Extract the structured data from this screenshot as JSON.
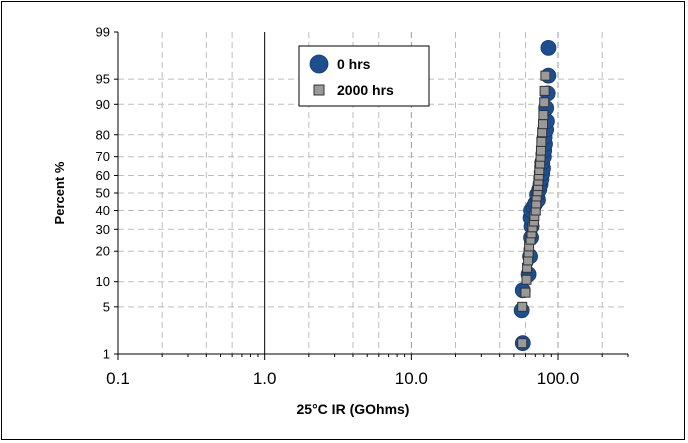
{
  "chart_data": {
    "type": "scatter",
    "title": "",
    "xlabel": "25°C IR (GOhms)",
    "ylabel": "Percent %",
    "x_scale": "log",
    "y_scale": "normal-probability",
    "xlim": [
      0.1,
      300
    ],
    "ylim": [
      1,
      99
    ],
    "x_ticks": [
      0.1,
      1.0,
      10.0,
      100.0
    ],
    "x_tick_labels": [
      "0.1",
      "1.0",
      "10.0",
      "100.0"
    ],
    "y_ticks": [
      1,
      5,
      10,
      20,
      30,
      40,
      50,
      60,
      70,
      80,
      90,
      95,
      99
    ],
    "y_tick_labels": [
      "1",
      "5",
      "10",
      "20",
      "30",
      "40",
      "50",
      "60",
      "70",
      "80",
      "90",
      "95",
      "99"
    ],
    "grid": true,
    "legend_position": "top-center",
    "series": [
      {
        "name": "0 hrs",
        "marker": "circle",
        "color": "#1f4e8f",
        "points": [
          [
            57.5,
            1.5
          ],
          [
            56.5,
            4.5
          ],
          [
            57.5,
            8.0
          ],
          [
            63.0,
            12.0
          ],
          [
            64.5,
            18.0
          ],
          [
            65.5,
            26.0
          ],
          [
            66.0,
            31.5
          ],
          [
            65.0,
            36.0
          ],
          [
            65.5,
            40.0
          ],
          [
            68.0,
            42.0
          ],
          [
            70.0,
            44.0
          ],
          [
            73.0,
            46.0
          ],
          [
            72.0,
            49.0
          ],
          [
            74.5,
            52.0
          ],
          [
            76.0,
            55.0
          ],
          [
            77.0,
            58.0
          ],
          [
            78.0,
            61.0
          ],
          [
            79.0,
            64.0
          ],
          [
            78.0,
            67.0
          ],
          [
            80.0,
            70.0
          ],
          [
            80.5,
            73.0
          ],
          [
            81.5,
            76.0
          ],
          [
            81.0,
            79.0
          ],
          [
            83.0,
            82.0
          ],
          [
            84.0,
            85.0
          ],
          [
            83.0,
            89.0
          ],
          [
            85.0,
            92.5
          ],
          [
            86.0,
            95.5
          ],
          [
            86.0,
            98.2
          ]
        ]
      },
      {
        "name": "2000 hrs",
        "marker": "square",
        "color": "#9a9a9a",
        "points": [
          [
            57.0,
            1.5
          ],
          [
            57.0,
            5.0
          ],
          [
            60.0,
            7.5
          ],
          [
            61.0,
            10.5
          ],
          [
            61.5,
            14.0
          ],
          [
            62.5,
            16.5
          ],
          [
            63.0,
            19.5
          ],
          [
            63.5,
            22.0
          ],
          [
            65.0,
            25.0
          ],
          [
            66.0,
            28.0
          ],
          [
            67.0,
            31.0
          ],
          [
            68.5,
            34.0
          ],
          [
            69.0,
            37.0
          ],
          [
            70.5,
            40.0
          ],
          [
            71.0,
            44.0
          ],
          [
            71.5,
            48.0
          ],
          [
            72.5,
            51.0
          ],
          [
            73.0,
            54.0
          ],
          [
            73.5,
            57.0
          ],
          [
            74.0,
            60.0
          ],
          [
            74.5,
            63.0
          ],
          [
            75.5,
            66.5
          ],
          [
            76.0,
            70.0
          ],
          [
            76.5,
            73.0
          ],
          [
            77.0,
            77.0
          ],
          [
            78.0,
            81.0
          ],
          [
            79.0,
            84.0
          ],
          [
            79.5,
            87.0
          ],
          [
            80.5,
            90.5
          ],
          [
            81.0,
            93.0
          ],
          [
            82.0,
            95.5
          ]
        ]
      }
    ]
  }
}
